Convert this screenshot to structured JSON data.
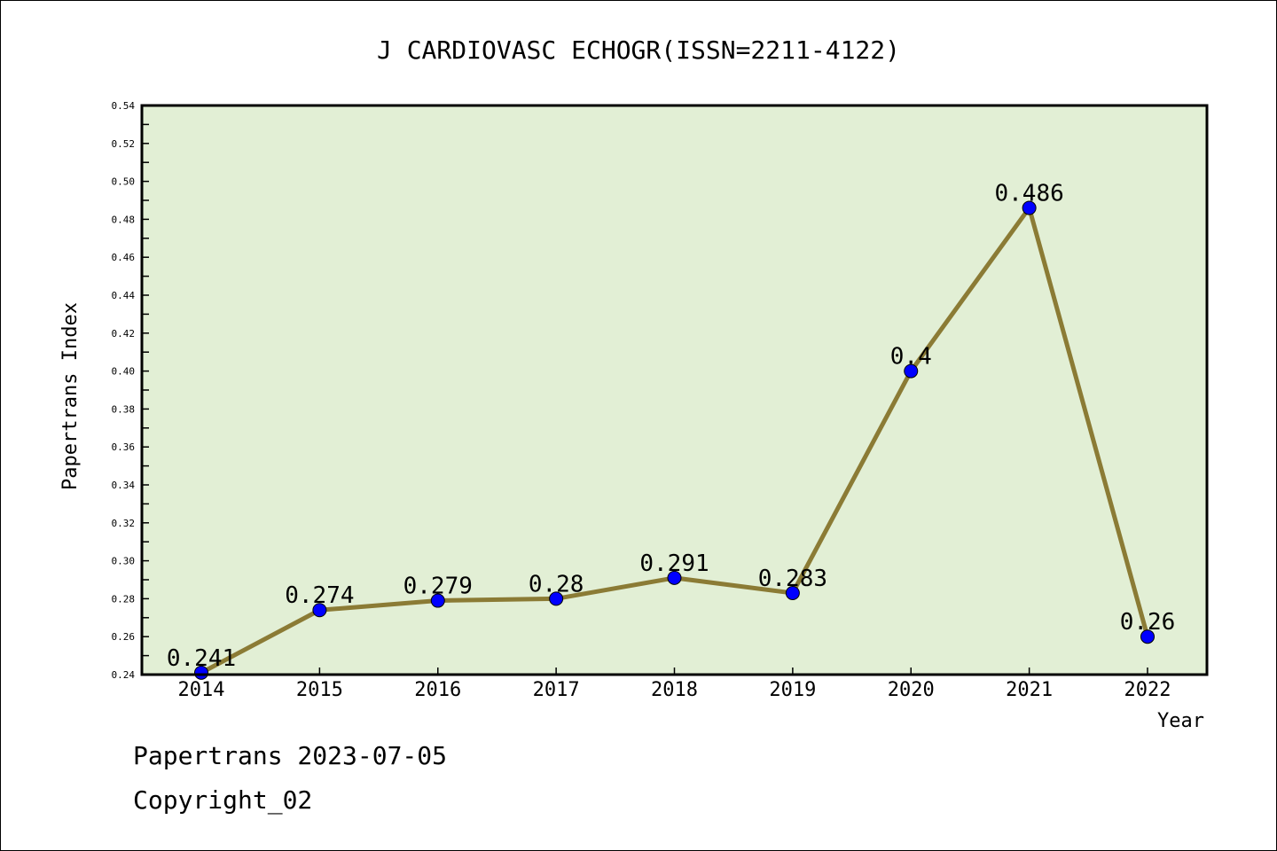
{
  "chart_data": {
    "type": "line",
    "title": "J CARDIOVASC ECHOGR(ISSN=2211-4122)",
    "xlabel": "Year",
    "ylabel": "Papertrans Index",
    "categories": [
      "2014",
      "2015",
      "2016",
      "2017",
      "2018",
      "2019",
      "2020",
      "2021",
      "2022"
    ],
    "values": [
      0.241,
      0.274,
      0.279,
      0.28,
      0.291,
      0.283,
      0.4,
      0.486,
      0.26
    ],
    "data_labels": [
      "0.241",
      "0.274",
      "0.279",
      "0.28",
      "0.291",
      "0.283",
      "0.4",
      "0.486",
      "0.26"
    ],
    "ylim": [
      0.24,
      0.54
    ],
    "yticks": [
      "0.24",
      "0.26",
      "0.28",
      "0.30",
      "0.32",
      "0.34",
      "0.36",
      "0.38",
      "0.40",
      "0.42",
      "0.44",
      "0.46",
      "0.48",
      "0.50",
      "0.52",
      "0.54"
    ],
    "grid": false,
    "colors": {
      "plot_bg": "#e2efd5",
      "line": "#8b7b35",
      "marker": "#0000ff"
    }
  },
  "footer": {
    "line1": "Papertrans 2023-07-05",
    "line2": "Copyright_02"
  }
}
